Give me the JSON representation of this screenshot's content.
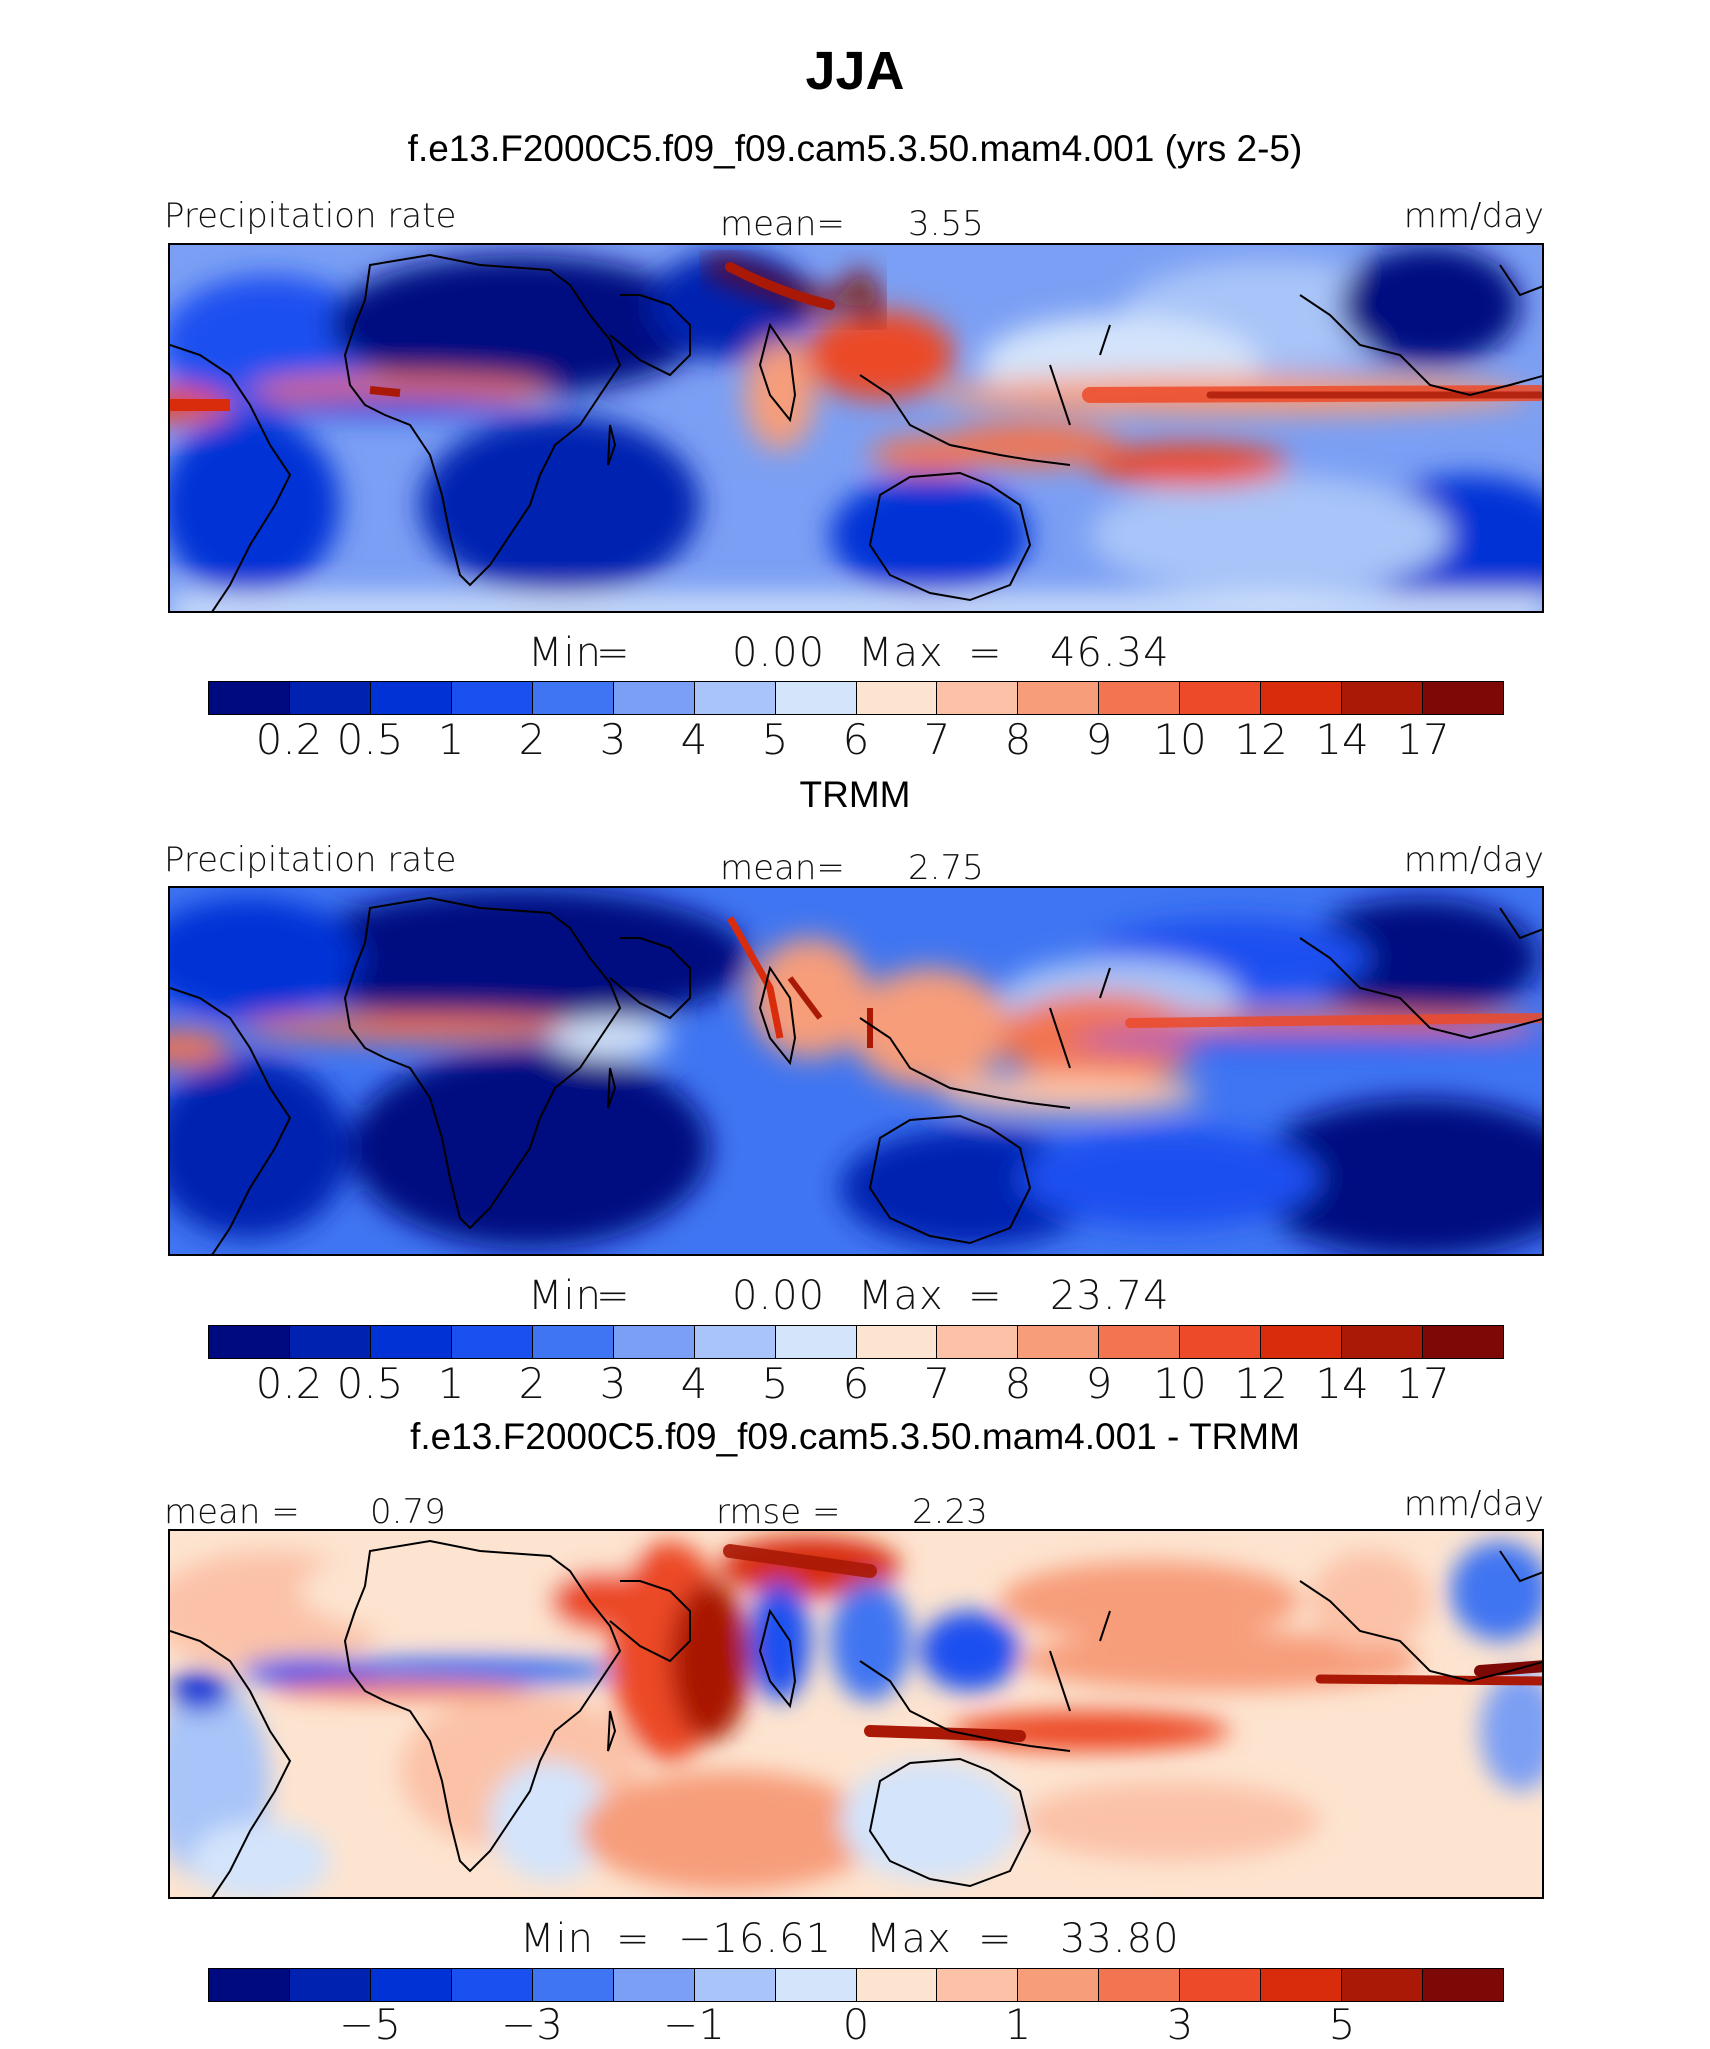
{
  "title": "JJA",
  "colors": {
    "abs_levels": [
      "#000a80",
      "#0022b0",
      "#0032d6",
      "#1a50f0",
      "#3f75f2",
      "#7b9ff4",
      "#a8c4f8",
      "#d3e4fb",
      "#fde4d0",
      "#fbc2a8",
      "#f79d7a",
      "#f37450",
      "#ec4a28",
      "#d82c0c",
      "#a91906",
      "#7c0905"
    ],
    "diff_levels": [
      "#000a80",
      "#0022b0",
      "#0032d6",
      "#1a50f0",
      "#3f75f2",
      "#7b9ff4",
      "#a8c4f8",
      "#d3e4fb",
      "#fde4d0",
      "#fbc2a8",
      "#f79d7a",
      "#f37450",
      "#ec4a28",
      "#d82c0c",
      "#a91906",
      "#7c0905"
    ]
  },
  "panels": [
    {
      "header": "f.e13.F2000C5.f09_f09.cam5.3.50.mam4.001 (yrs 2-5)",
      "left_label": "Precipitation rate",
      "center_label": "mean=",
      "center_value": "3.55",
      "right_label": "mm/day",
      "min_label": "Min",
      "min_value": "0.00",
      "max_label": "Max",
      "max_value": "46.34",
      "tick_labels": [
        "0.2",
        "0.5",
        "1",
        "2",
        "3",
        "4",
        "5",
        "6",
        "7",
        "8",
        "9",
        "10",
        "12",
        "14",
        "17"
      ]
    },
    {
      "header": "TRMM",
      "left_label": "Precipitation rate",
      "center_label": "mean=",
      "center_value": "2.75",
      "right_label": "mm/day",
      "min_label": "Min",
      "min_value": "0.00",
      "max_label": "Max",
      "max_value": "23.74",
      "tick_labels": [
        "0.2",
        "0.5",
        "1",
        "2",
        "3",
        "4",
        "5",
        "6",
        "7",
        "8",
        "9",
        "10",
        "12",
        "14",
        "17"
      ]
    },
    {
      "header": "f.e13.F2000C5.f09_f09.cam5.3.50.mam4.001 - TRMM",
      "left_label": "mean =",
      "left_value": "0.79",
      "center_label": "rmse =",
      "center_value": "2.23",
      "right_label": "mm/day",
      "min_label": "Min",
      "min_value": "−16.61",
      "max_label": "Max",
      "max_value": "33.80",
      "tick_labels": [
        "−5",
        "−3",
        "−1",
        "0",
        "1",
        "3",
        "5"
      ]
    }
  ]
}
